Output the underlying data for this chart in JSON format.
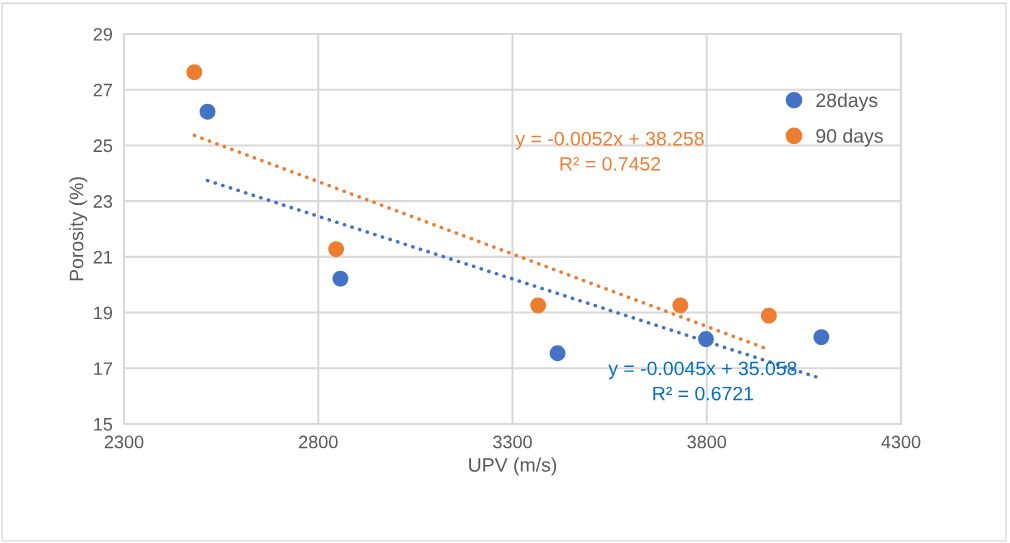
{
  "chart_data": {
    "type": "scatter",
    "xlabel": "UPV (m/s)",
    "ylabel": "Porosity (%)",
    "xlim": [
      2300,
      4300
    ],
    "xticks": [
      2300,
      2800,
      3300,
      3800,
      4300
    ],
    "ylim": [
      15,
      29
    ],
    "yticks": [
      15,
      17,
      19,
      21,
      23,
      25,
      27,
      29
    ],
    "grid": true,
    "legend": "right",
    "marker": "circle",
    "series": [
      {
        "name": "28days",
        "color": "#4472c4",
        "x": [
          2515,
          2857,
          3416,
          3798,
          4095
        ],
        "values": [
          26.21,
          20.22,
          17.54,
          18.05,
          18.12
        ]
      },
      {
        "name": "90 days",
        "color": "#ed7d31",
        "x": [
          2481,
          2846,
          3366,
          3732,
          3960
        ],
        "values": [
          27.63,
          21.28,
          19.26,
          19.26,
          18.89
        ]
      },
      {
        "type": "line",
        "line_style": "dotted",
        "marker": "none",
        "color": "#4472c4",
        "x": [
          2515,
          4095
        ],
        "values": [
          23.74,
          16.63
        ]
      },
      {
        "type": "line",
        "line_style": "dotted",
        "marker": "none",
        "color": "#ed7d31",
        "x": [
          2481,
          3960
        ],
        "values": [
          25.36,
          17.67
        ]
      }
    ],
    "annotations": [
      "y = -0.0052x + 38.258\nR² = 0.7452",
      "y = -0.0045x + 35.058\nR² = 0.6721"
    ]
  }
}
